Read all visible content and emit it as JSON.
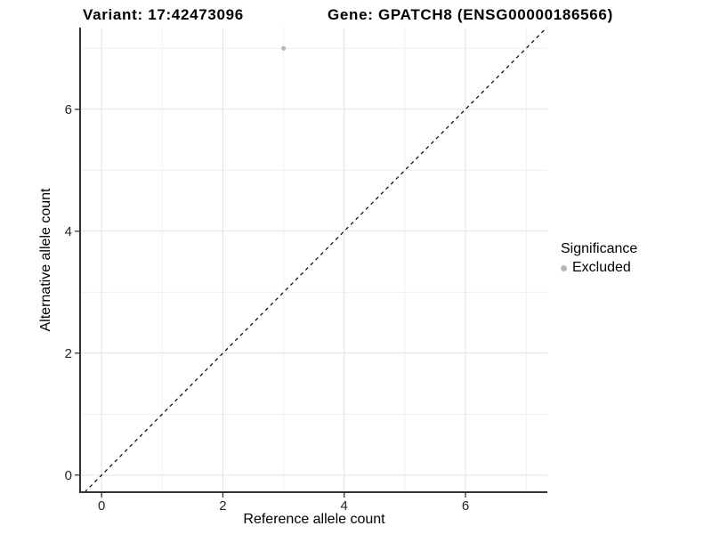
{
  "chart_data": {
    "type": "scatter",
    "title_left": "Variant: 17:42473096",
    "title_right": "Gene: GPATCH8 (ENSG00000186566)",
    "xlabel": "Reference allele count",
    "ylabel": "Alternative allele count",
    "xlim": [
      -0.34,
      7.35
    ],
    "ylim": [
      -0.28,
      7.34
    ],
    "x_ticks": [
      0,
      2,
      4,
      6
    ],
    "y_ticks": [
      0,
      2,
      4,
      6
    ],
    "x_minor_ticks": [
      1,
      3,
      5,
      7
    ],
    "y_minor_ticks": [
      1,
      3,
      5,
      7
    ],
    "grid": "major+minor",
    "series": [
      {
        "name": "Excluded",
        "marker": "circle",
        "color": "#b8b8b8",
        "points": [
          {
            "x": 3,
            "y": 7
          }
        ]
      }
    ],
    "reference_line": {
      "slope": 1,
      "intercept": 0,
      "style": "dashed",
      "color": "#000000"
    },
    "legend": {
      "title": "Significance",
      "position": "right",
      "items": [
        {
          "label": "Excluded",
          "color": "#b8b8b8",
          "marker": "circle"
        }
      ]
    },
    "colors": {
      "background": "#ffffff",
      "grid_major": "#e2e2e2",
      "grid_minor": "#efefef",
      "axis": "#333333",
      "tick_label": "#262626"
    }
  }
}
